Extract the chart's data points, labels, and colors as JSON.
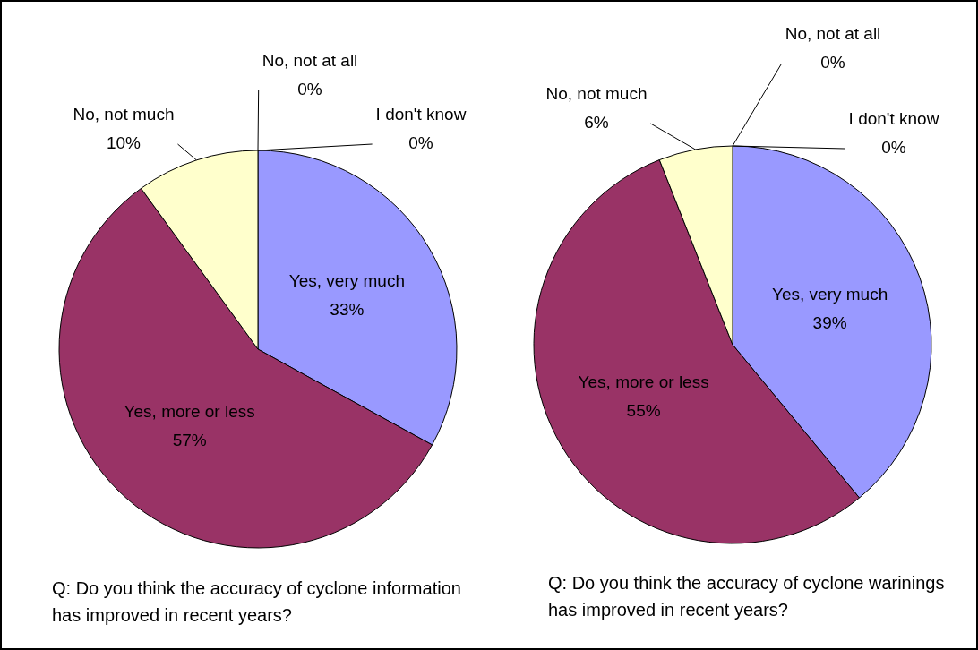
{
  "chart_data": [
    {
      "type": "pie",
      "categories": [
        "Yes, very much",
        "Yes, more or less",
        "No, not much",
        "No, not at all",
        "I don't know"
      ],
      "values": [
        33,
        57,
        10,
        0,
        0
      ],
      "value_labels": [
        "33%",
        "57%",
        "10%",
        "0%",
        "0%"
      ],
      "colors": [
        "#9999ff",
        "#993366",
        "#ffffcc",
        "#ffffff",
        "#ffffff"
      ],
      "legend": false,
      "annotations": [
        "Q: Do you think the accuracy of cyclone information has improved in recent years?"
      ]
    },
    {
      "type": "pie",
      "categories": [
        "Yes, very much",
        "Yes, more or less",
        "No, not much",
        "No, not at all",
        "I don't know"
      ],
      "values": [
        39,
        55,
        6,
        0,
        0
      ],
      "value_labels": [
        "39%",
        "55%",
        "6%",
        "0%",
        "0%"
      ],
      "colors": [
        "#9999ff",
        "#993366",
        "#ffffcc",
        "#ffffff",
        "#ffffff"
      ],
      "legend": false,
      "annotations": [
        "Q: Do you think the accuracy of cyclone warinings has improved in recent years?"
      ]
    }
  ]
}
